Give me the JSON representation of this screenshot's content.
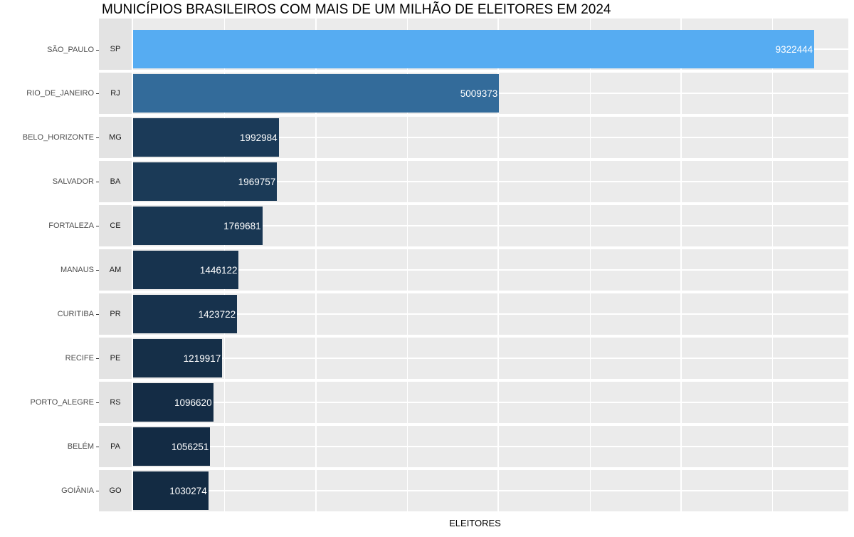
{
  "chart_data": {
    "type": "bar",
    "orientation": "horizontal",
    "title": "MUNICÍPIOS BRASILEIROS COM MAIS DE UM MILHÃO DE ELEITORES EM 2024",
    "xlabel": "ELEITORES",
    "ylabel": "",
    "categories": [
      "SÃO_PAULO",
      "RIO_DE_JANEIRO",
      "BELO_HORIZONTE",
      "SALVADOR",
      "FORTALEZA",
      "MANAUS",
      "CURITIBA",
      "RECIFE",
      "PORTO_ALEGRE",
      "BELÉM",
      "GOIÂNIA"
    ],
    "facet_labels": [
      "SP",
      "RJ",
      "MG",
      "BA",
      "CE",
      "AM",
      "PR",
      "PE",
      "RS",
      "PA",
      "GO"
    ],
    "values": [
      9322444,
      5009373,
      1992984,
      1969757,
      1769681,
      1446122,
      1423722,
      1219917,
      1096620,
      1056251,
      1030274
    ],
    "bar_colors": [
      "#56ACF2",
      "#336B9A",
      "#1B3A58",
      "#1B3A57",
      "#193753",
      "#17334E",
      "#17324D",
      "#152F48",
      "#142C45",
      "#132B44",
      "#132B43"
    ],
    "value_labels_shown": true,
    "xlim": [
      0,
      9788566
    ],
    "x_major_gridlines": [
      2500000,
      5000000,
      7500000
    ],
    "x_minor_gridlines": [
      1250000,
      3750000,
      6250000,
      8750000
    ],
    "grid": true,
    "legend_position": "none",
    "colors": {
      "panel_bg": "#EBEBEB",
      "strip_bg": "#E3E3E3",
      "grid": "#FFFFFF",
      "axis_text": "#4D4D4D",
      "strip_text": "#1A1A1A",
      "value_text": "#FFFFFF",
      "title_text": "#000000"
    }
  }
}
